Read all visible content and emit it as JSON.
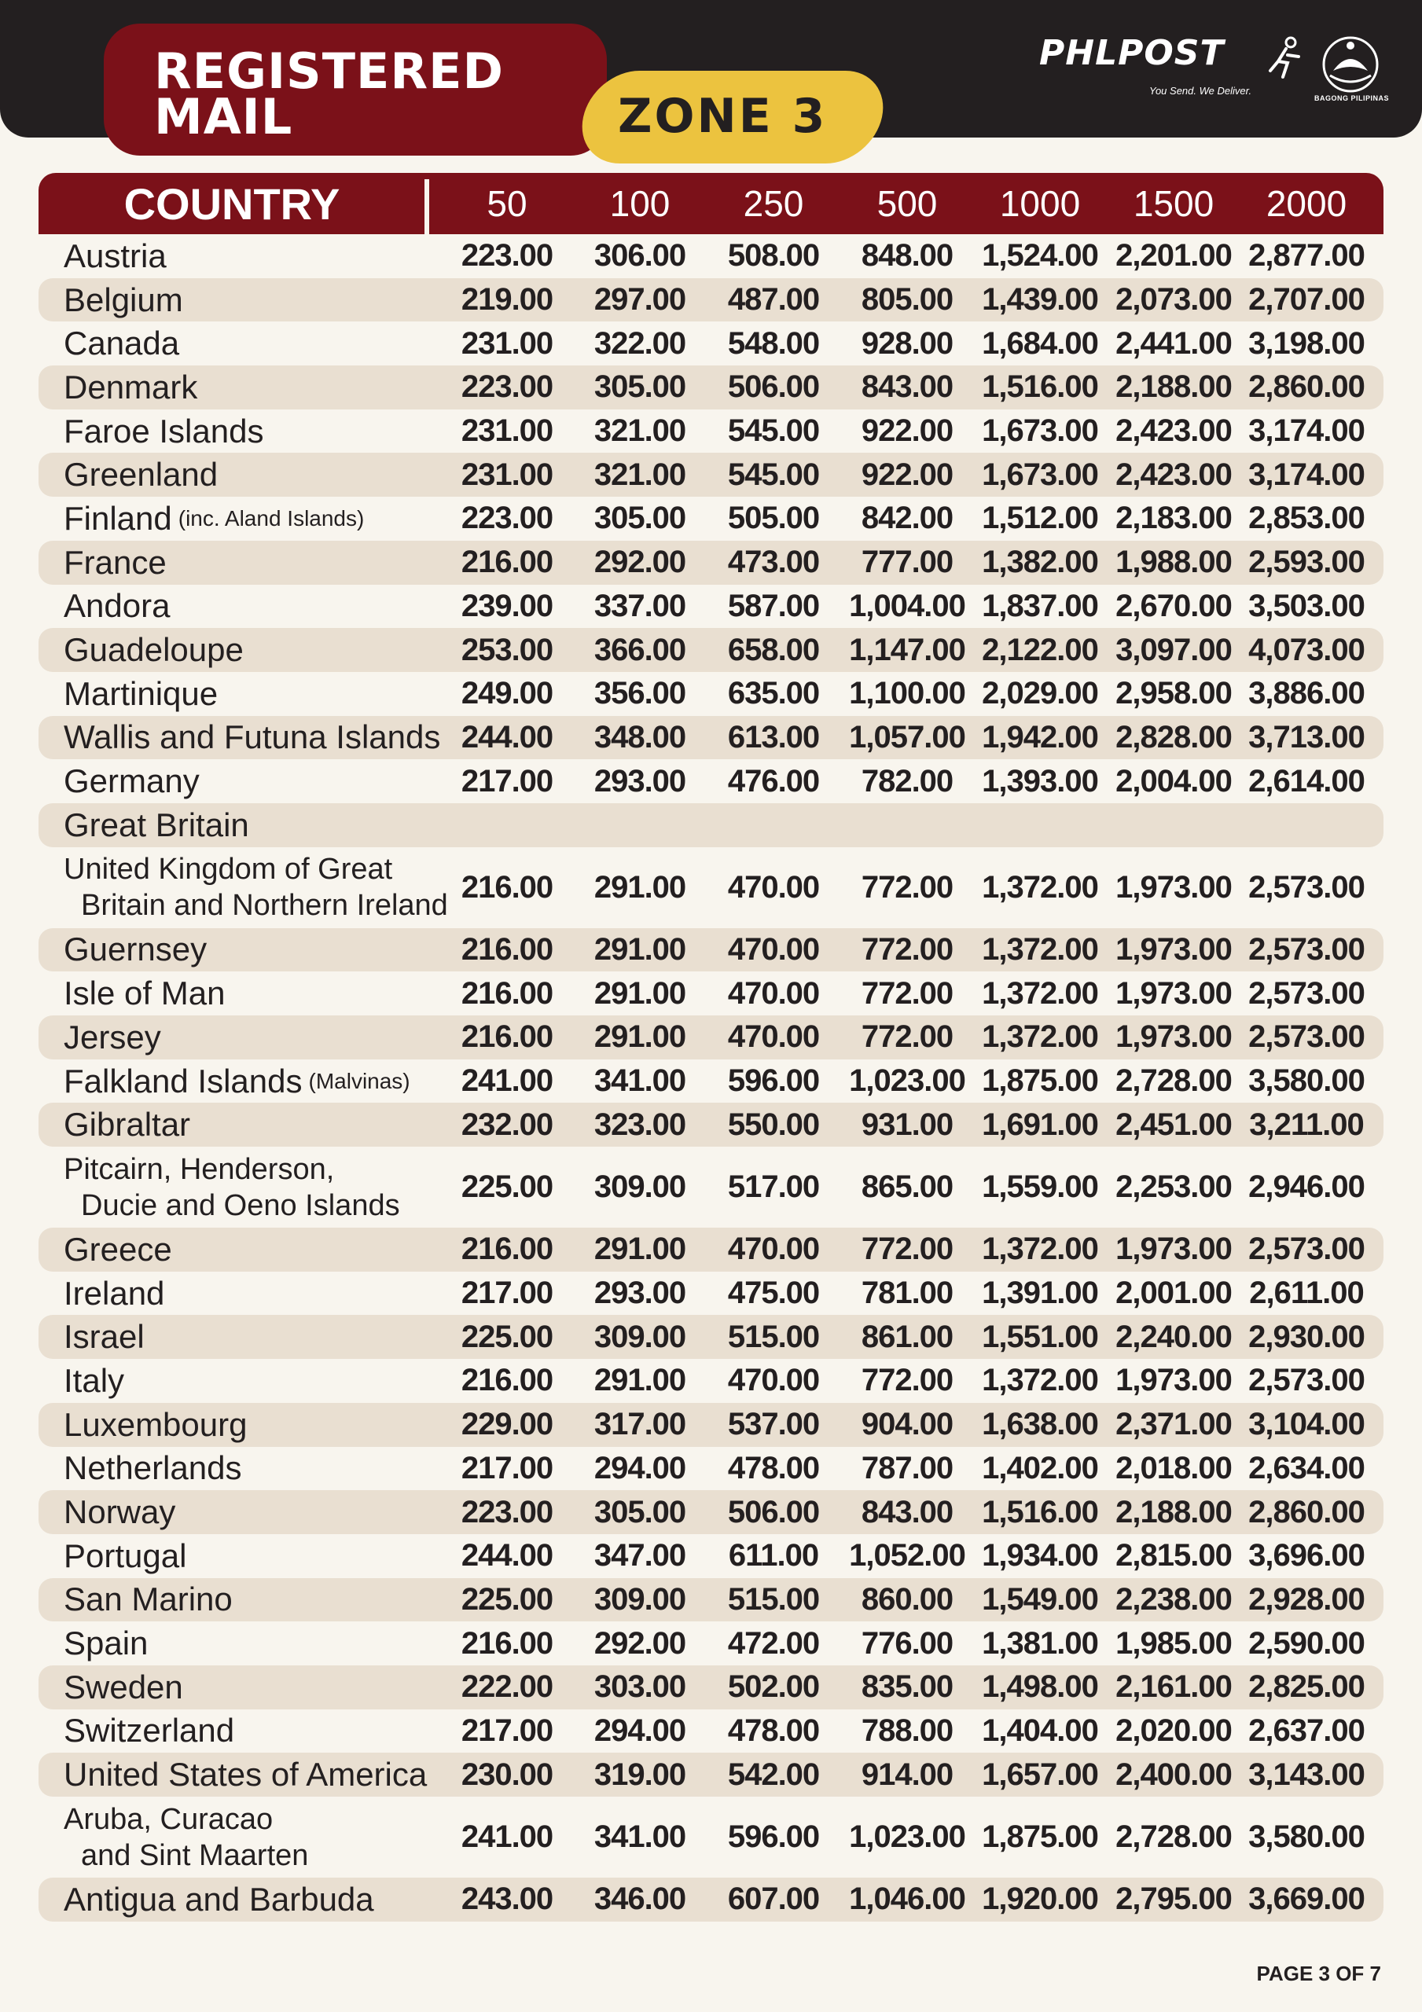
{
  "header": {
    "title_line1": "REGISTERED",
    "title_line2": "MAIL",
    "zone": "ZONE 3",
    "logo_text": "PHLPOST",
    "logo_tagline": "You Send. We Deliver.",
    "seal_text": "BAGONG PILIPINAS"
  },
  "table": {
    "country_header": "COUNTRY",
    "weight_headers": [
      "50",
      "100",
      "250",
      "500",
      "1000",
      "1500",
      "2000"
    ],
    "rows": [
      {
        "country": "Austria",
        "values": [
          "223.00",
          "306.00",
          "508.00",
          "848.00",
          "1,524.00",
          "2,201.00",
          "2,877.00"
        ]
      },
      {
        "country": "Belgium",
        "values": [
          "219.00",
          "297.00",
          "487.00",
          "805.00",
          "1,439.00",
          "2,073.00",
          "2,707.00"
        ]
      },
      {
        "country": "Canada",
        "values": [
          "231.00",
          "322.00",
          "548.00",
          "928.00",
          "1,684.00",
          "2,441.00",
          "3,198.00"
        ]
      },
      {
        "country": "Denmark",
        "values": [
          "223.00",
          "305.00",
          "506.00",
          "843.00",
          "1,516.00",
          "2,188.00",
          "2,860.00"
        ]
      },
      {
        "country": "Faroe Islands",
        "values": [
          "231.00",
          "321.00",
          "545.00",
          "922.00",
          "1,673.00",
          "2,423.00",
          "3,174.00"
        ]
      },
      {
        "country": "Greenland",
        "values": [
          "231.00",
          "321.00",
          "545.00",
          "922.00",
          "1,673.00",
          "2,423.00",
          "3,174.00"
        ]
      },
      {
        "country": "Finland",
        "note": "(inc. Aland Islands)",
        "values": [
          "223.00",
          "305.00",
          "505.00",
          "842.00",
          "1,512.00",
          "2,183.00",
          "2,853.00"
        ]
      },
      {
        "country": "France",
        "values": [
          "216.00",
          "292.00",
          "473.00",
          "777.00",
          "1,382.00",
          "1,988.00",
          "2,593.00"
        ]
      },
      {
        "country": "Andora",
        "values": [
          "239.00",
          "337.00",
          "587.00",
          "1,004.00",
          "1,837.00",
          "2,670.00",
          "3,503.00"
        ]
      },
      {
        "country": "Guadeloupe",
        "values": [
          "253.00",
          "366.00",
          "658.00",
          "1,147.00",
          "2,122.00",
          "3,097.00",
          "4,073.00"
        ]
      },
      {
        "country": "Martinique",
        "values": [
          "249.00",
          "356.00",
          "635.00",
          "1,100.00",
          "2,029.00",
          "2,958.00",
          "3,886.00"
        ]
      },
      {
        "country": "Wallis and Futuna Islands",
        "values": [
          "244.00",
          "348.00",
          "613.00",
          "1,057.00",
          "1,942.00",
          "2,828.00",
          "3,713.00"
        ]
      },
      {
        "country": "Germany",
        "values": [
          "217.00",
          "293.00",
          "476.00",
          "782.00",
          "1,393.00",
          "2,004.00",
          "2,614.00"
        ]
      },
      {
        "country": "Great Britain",
        "values": [
          "",
          "",
          "",
          "",
          "",
          "",
          ""
        ]
      },
      {
        "country_line1": "United Kingdom of Great",
        "country_line2": "Britain and Northern Ireland",
        "values": [
          "216.00",
          "291.00",
          "470.00",
          "772.00",
          "1,372.00",
          "1,973.00",
          "2,573.00"
        ]
      },
      {
        "country": "Guernsey",
        "values": [
          "216.00",
          "291.00",
          "470.00",
          "772.00",
          "1,372.00",
          "1,973.00",
          "2,573.00"
        ]
      },
      {
        "country": "Isle of Man",
        "values": [
          "216.00",
          "291.00",
          "470.00",
          "772.00",
          "1,372.00",
          "1,973.00",
          "2,573.00"
        ]
      },
      {
        "country": "Jersey",
        "values": [
          "216.00",
          "291.00",
          "470.00",
          "772.00",
          "1,372.00",
          "1,973.00",
          "2,573.00"
        ]
      },
      {
        "country": "Falkland Islands",
        "note": "(Malvinas)",
        "values": [
          "241.00",
          "341.00",
          "596.00",
          "1,023.00",
          "1,875.00",
          "2,728.00",
          "3,580.00"
        ]
      },
      {
        "country": "Gibraltar",
        "values": [
          "232.00",
          "323.00",
          "550.00",
          "931.00",
          "1,691.00",
          "2,451.00",
          "3,211.00"
        ]
      },
      {
        "country_line1": "Pitcairn, Henderson,",
        "country_line2": "Ducie and Oeno Islands",
        "values": [
          "225.00",
          "309.00",
          "517.00",
          "865.00",
          "1,559.00",
          "2,253.00",
          "2,946.00"
        ]
      },
      {
        "country": "Greece",
        "values": [
          "216.00",
          "291.00",
          "470.00",
          "772.00",
          "1,372.00",
          "1,973.00",
          "2,573.00"
        ]
      },
      {
        "country": "Ireland",
        "values": [
          "217.00",
          "293.00",
          "475.00",
          "781.00",
          "1,391.00",
          "2,001.00",
          "2,611.00"
        ]
      },
      {
        "country": "Israel",
        "values": [
          "225.00",
          "309.00",
          "515.00",
          "861.00",
          "1,551.00",
          "2,240.00",
          "2,930.00"
        ]
      },
      {
        "country": "Italy",
        "values": [
          "216.00",
          "291.00",
          "470.00",
          "772.00",
          "1,372.00",
          "1,973.00",
          "2,573.00"
        ]
      },
      {
        "country": "Luxembourg",
        "values": [
          "229.00",
          "317.00",
          "537.00",
          "904.00",
          "1,638.00",
          "2,371.00",
          "3,104.00"
        ]
      },
      {
        "country": "Netherlands",
        "values": [
          "217.00",
          "294.00",
          "478.00",
          "787.00",
          "1,402.00",
          "2,018.00",
          "2,634.00"
        ]
      },
      {
        "country": "Norway",
        "values": [
          "223.00",
          "305.00",
          "506.00",
          "843.00",
          "1,516.00",
          "2,188.00",
          "2,860.00"
        ]
      },
      {
        "country": "Portugal",
        "values": [
          "244.00",
          "347.00",
          "611.00",
          "1,052.00",
          "1,934.00",
          "2,815.00",
          "3,696.00"
        ]
      },
      {
        "country": "San Marino",
        "values": [
          "225.00",
          "309.00",
          "515.00",
          "860.00",
          "1,549.00",
          "2,238.00",
          "2,928.00"
        ]
      },
      {
        "country": "Spain",
        "values": [
          "216.00",
          "292.00",
          "472.00",
          "776.00",
          "1,381.00",
          "1,985.00",
          "2,590.00"
        ]
      },
      {
        "country": "Sweden",
        "values": [
          "222.00",
          "303.00",
          "502.00",
          "835.00",
          "1,498.00",
          "2,161.00",
          "2,825.00"
        ]
      },
      {
        "country": "Switzerland",
        "values": [
          "217.00",
          "294.00",
          "478.00",
          "788.00",
          "1,404.00",
          "2,020.00",
          "2,637.00"
        ]
      },
      {
        "country": "United States of America",
        "values": [
          "230.00",
          "319.00",
          "542.00",
          "914.00",
          "1,657.00",
          "2,400.00",
          "3,143.00"
        ]
      },
      {
        "country_line1": "Aruba, Curacao",
        "country_line2": "and Sint Maarten",
        "values": [
          "241.00",
          "341.00",
          "596.00",
          "1,023.00",
          "1,875.00",
          "2,728.00",
          "3,580.00"
        ]
      },
      {
        "country": "Antigua and Barbuda",
        "values": [
          "243.00",
          "346.00",
          "607.00",
          "1,046.00",
          "1,920.00",
          "2,795.00",
          "3,669.00"
        ]
      }
    ]
  },
  "footer": {
    "page_label": "PAGE 3 OF 7"
  }
}
